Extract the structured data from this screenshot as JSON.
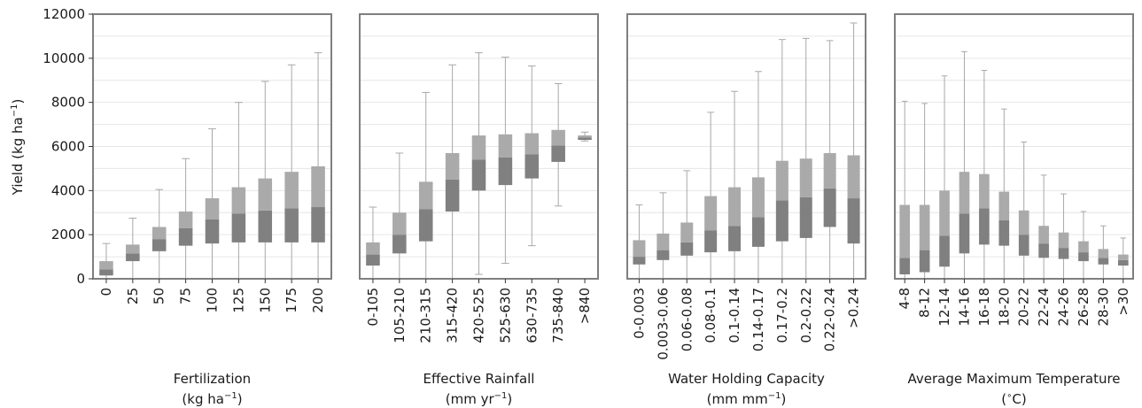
{
  "figure": {
    "ylabel": "Yield (kg ha$^{-1}$)"
  },
  "colors": {
    "upper_box": "#aaaaaa",
    "lower_box": "#808080",
    "whisker": "#a8a8a8",
    "frame": "#7f7f7f",
    "grid": "#e6e6e6"
  },
  "chart_data": [
    {
      "type": "box",
      "xlabel_line1": "Fertilization",
      "xlabel_line2_pre": "(kg ha",
      "xlabel_line2_sup": "−1",
      "xlabel_line2_post": ")",
      "ylabel": "Yield (kg ha−1)",
      "ylim": [
        0,
        12000
      ],
      "yticks": [
        0,
        2000,
        4000,
        6000,
        8000,
        10000,
        12000
      ],
      "grid": true,
      "categories": [
        "0",
        "25",
        "50",
        "75",
        "100",
        "125",
        "150",
        "175",
        "200"
      ],
      "boxes": [
        {
          "min": 0,
          "q1": 150,
          "median": 420,
          "q3": 800,
          "max": 1600
        },
        {
          "min": 0,
          "q1": 800,
          "median": 1150,
          "q3": 1550,
          "max": 2750
        },
        {
          "min": 0,
          "q1": 1250,
          "median": 1800,
          "q3": 2350,
          "max": 4050
        },
        {
          "min": 0,
          "q1": 1500,
          "median": 2300,
          "q3": 3050,
          "max": 5450
        },
        {
          "min": 0,
          "q1": 1600,
          "median": 2700,
          "q3": 3650,
          "max": 6800
        },
        {
          "min": 0,
          "q1": 1650,
          "median": 2950,
          "q3": 4150,
          "max": 8000
        },
        {
          "min": 0,
          "q1": 1650,
          "median": 3100,
          "q3": 4550,
          "max": 8950
        },
        {
          "min": 0,
          "q1": 1650,
          "median": 3200,
          "q3": 4850,
          "max": 9700
        },
        {
          "min": 0,
          "q1": 1650,
          "median": 3250,
          "q3": 5100,
          "max": 10250
        }
      ]
    },
    {
      "type": "box",
      "xlabel_line1": "Effective Rainfall",
      "xlabel_line2_pre": "(mm yr",
      "xlabel_line2_sup": "−1",
      "xlabel_line2_post": ")",
      "ylim": [
        0,
        12000
      ],
      "grid": true,
      "categories": [
        "0-105",
        "105-210",
        "210-315",
        "315-420",
        "420-525",
        "525-630",
        "630-735",
        "735-840",
        ">840"
      ],
      "boxes": [
        {
          "min": 0,
          "q1": 600,
          "median": 1100,
          "q3": 1650,
          "max": 3250
        },
        {
          "min": 0,
          "q1": 1150,
          "median": 2000,
          "q3": 3000,
          "max": 5700
        },
        {
          "min": 0,
          "q1": 1700,
          "median": 3150,
          "q3": 4400,
          "max": 8450
        },
        {
          "min": 0,
          "q1": 3050,
          "median": 4500,
          "q3": 5700,
          "max": 9700
        },
        {
          "min": 200,
          "q1": 4000,
          "median": 5400,
          "q3": 6500,
          "max": 10250
        },
        {
          "min": 700,
          "q1": 4250,
          "median": 5500,
          "q3": 6550,
          "max": 10050
        },
        {
          "min": 1500,
          "q1": 4550,
          "median": 5650,
          "q3": 6600,
          "max": 9650
        },
        {
          "min": 3300,
          "q1": 5300,
          "median": 6050,
          "q3": 6750,
          "max": 8850
        },
        {
          "min": 6250,
          "q1": 6300,
          "median": 6400,
          "q3": 6500,
          "max": 6650
        }
      ]
    },
    {
      "type": "box",
      "xlabel_line1": "Water Holding Capacity",
      "xlabel_line2_pre": "(mm mm",
      "xlabel_line2_sup": "−1",
      "xlabel_line2_post": ")",
      "ylim": [
        0,
        12000
      ],
      "grid": true,
      "categories": [
        "0-0.003",
        "0.003-0.06",
        "0.06-0.08",
        "0.08-0.1",
        "0.1-0.14",
        "0.14-0.17",
        "0.17-0.2",
        "0.2-0.22",
        "0.22-0.24",
        ">0.24"
      ],
      "boxes": [
        {
          "min": 0,
          "q1": 650,
          "median": 1000,
          "q3": 1750,
          "max": 3350
        },
        {
          "min": 0,
          "q1": 850,
          "median": 1300,
          "q3": 2050,
          "max": 3900
        },
        {
          "min": 0,
          "q1": 1050,
          "median": 1650,
          "q3": 2550,
          "max": 4900
        },
        {
          "min": 0,
          "q1": 1200,
          "median": 2200,
          "q3": 3750,
          "max": 7550
        },
        {
          "min": 0,
          "q1": 1250,
          "median": 2400,
          "q3": 4150,
          "max": 8500
        },
        {
          "min": 0,
          "q1": 1450,
          "median": 2800,
          "q3": 4600,
          "max": 9400
        },
        {
          "min": 0,
          "q1": 1700,
          "median": 3550,
          "q3": 5350,
          "max": 10850
        },
        {
          "min": 0,
          "q1": 1850,
          "median": 3700,
          "q3": 5450,
          "max": 10900
        },
        {
          "min": 0,
          "q1": 2350,
          "median": 4100,
          "q3": 5700,
          "max": 10800
        },
        {
          "min": 0,
          "q1": 1600,
          "median": 3650,
          "q3": 5600,
          "max": 11600
        }
      ]
    },
    {
      "type": "box",
      "xlabel_line1": "Average Maximum Temperature",
      "xlabel_line2_pre": "(",
      "xlabel_line2_sup": "∘",
      "xlabel_line2_post": "C)",
      "ylim": [
        0,
        12000
      ],
      "grid": true,
      "categories": [
        "4-8",
        "8-12",
        "12-14",
        "14-16",
        "16-18",
        "18-20",
        "20-22",
        "22-24",
        "24-26",
        "26-28",
        "28-30",
        ">30"
      ],
      "boxes": [
        {
          "min": 0,
          "q1": 200,
          "median": 950,
          "q3": 3350,
          "max": 8050
        },
        {
          "min": 0,
          "q1": 300,
          "median": 1300,
          "q3": 3350,
          "max": 7950
        },
        {
          "min": 0,
          "q1": 550,
          "median": 1950,
          "q3": 4000,
          "max": 9200
        },
        {
          "min": 0,
          "q1": 1150,
          "median": 2950,
          "q3": 4850,
          "max": 10300
        },
        {
          "min": 0,
          "q1": 1550,
          "median": 3200,
          "q3": 4750,
          "max": 9450
        },
        {
          "min": 0,
          "q1": 1500,
          "median": 2650,
          "q3": 3950,
          "max": 7700
        },
        {
          "min": 0,
          "q1": 1050,
          "median": 2000,
          "q3": 3100,
          "max": 6200
        },
        {
          "min": 0,
          "q1": 950,
          "median": 1600,
          "q3": 2400,
          "max": 4700
        },
        {
          "min": 0,
          "q1": 900,
          "median": 1400,
          "q3": 2100,
          "max": 3850
        },
        {
          "min": 0,
          "q1": 800,
          "median": 1200,
          "q3": 1700,
          "max": 3050
        },
        {
          "min": 0,
          "q1": 650,
          "median": 950,
          "q3": 1350,
          "max": 2400
        },
        {
          "min": 0,
          "q1": 600,
          "median": 850,
          "q3": 1100,
          "max": 1850
        }
      ]
    }
  ]
}
